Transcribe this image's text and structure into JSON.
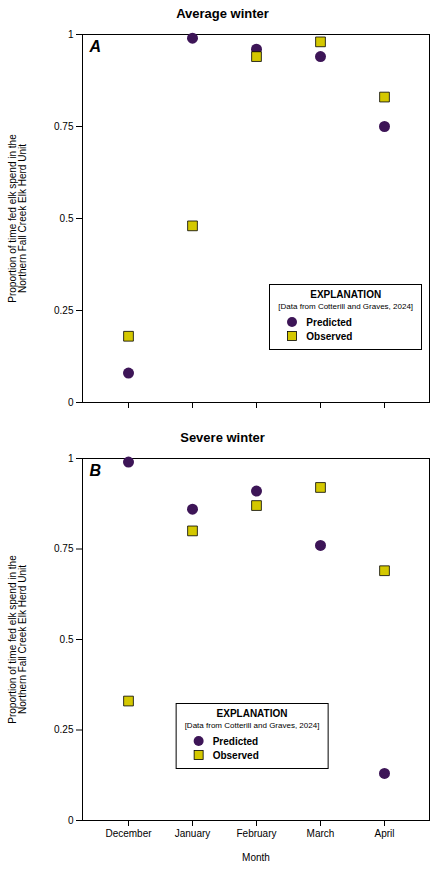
{
  "chart_data": [
    {
      "type": "scatter",
      "title": "Average winter",
      "annotation": "A",
      "categories": [
        "December",
        "January",
        "February",
        "March",
        "April"
      ],
      "series": [
        {
          "name": "Predicted",
          "color": "#3D1557",
          "marker": "circle",
          "values": [
            0.08,
            0.99,
            0.96,
            0.94,
            0.75
          ]
        },
        {
          "name": "Observed",
          "color": "#D4C800",
          "marker": "square",
          "values": [
            0.18,
            0.48,
            0.94,
            0.98,
            0.83
          ]
        }
      ],
      "ylabel": "Proportion of time fed elk spend in the\nNorthern Fall Creek Elk Herd Unit",
      "ylim": [
        0,
        1
      ],
      "yticks": [
        0,
        0.25,
        0.5,
        0.75,
        1
      ],
      "tick_labels": "y",
      "grid": false,
      "legend": "lower right",
      "legend_title": "EXPLANATION",
      "legend_subtitle": "[Data from Cotterill and Graves, 2024]"
    },
    {
      "type": "scatter",
      "title": "Severe winter",
      "annotation": "B",
      "categories": [
        "December",
        "January",
        "February",
        "March",
        "April"
      ],
      "series": [
        {
          "name": "Predicted",
          "color": "#3D1557",
          "marker": "circle",
          "values": [
            0.99,
            0.86,
            0.91,
            0.76,
            0.13
          ]
        },
        {
          "name": "Observed",
          "color": "#D4C800",
          "marker": "square",
          "values": [
            0.33,
            0.8,
            0.87,
            0.92,
            0.69
          ]
        }
      ],
      "ylabel": "Proportion of time fed elk spend in the\nNorthern Fall Creek Elk Herd Unit",
      "xlabel": "Month",
      "ylim": [
        0,
        1
      ],
      "yticks": [
        0,
        0.25,
        0.5,
        0.75,
        1
      ],
      "grid": false,
      "legend": "lower center",
      "legend_title": "EXPLANATION",
      "legend_subtitle": "[Data from Cotterill and Graves, 2024]"
    }
  ]
}
